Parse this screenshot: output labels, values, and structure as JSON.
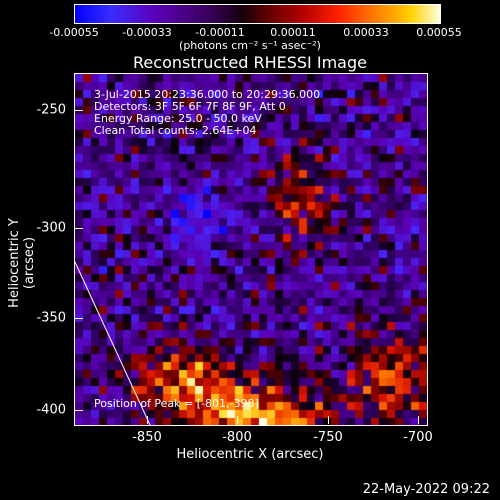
{
  "colorbar": {
    "ticks": [
      "-0.00055",
      "-0.00033",
      "-0.00011",
      "0.00011",
      "0.00033",
      "0.00055"
    ],
    "units_label": "(photons cm⁻² s⁻¹ asec⁻²)"
  },
  "plot": {
    "title": "Reconstructed RHESSI Image",
    "info_lines": [
      "3-Jul-2015 20:23:36.000 to 20:29:36.000",
      "Detectors: 3F 5F 6F 7F 8F 9F, Att 0",
      "Energy Range: 25.0 - 50.0 keV",
      "Clean     Total counts: 2.64E+04"
    ],
    "peak_text": "Position of Peak = [-801,-398]",
    "xlabel": "Heliocentric X (arcsec)",
    "ylabel": "Heliocentric Y (arcsec)",
    "xticks": [
      "-850",
      "-800",
      "-750",
      "-700"
    ],
    "yticks": [
      "-250",
      "-300",
      "-350",
      "-400"
    ]
  },
  "footer": {
    "date": "22-May-2022 09:22"
  }
}
